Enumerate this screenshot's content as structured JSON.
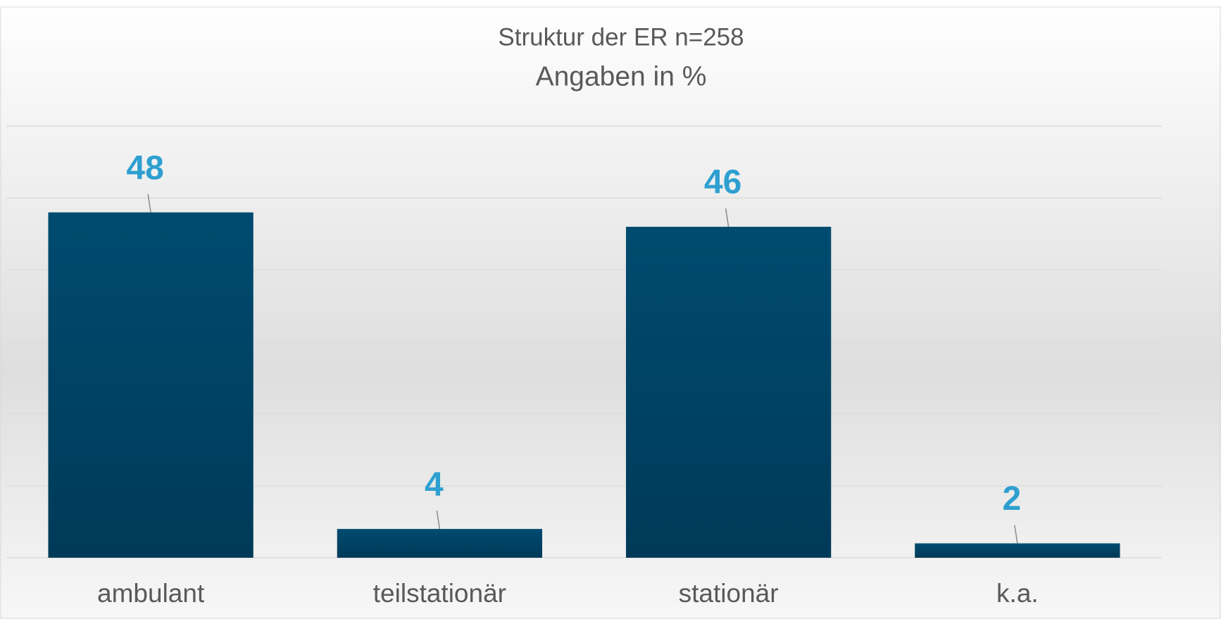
{
  "chart_data": {
    "type": "bar",
    "title": "Struktur der ER n=258",
    "subtitle": "Angaben in %",
    "categories": [
      "ambulant",
      "teilstationär",
      "stationär",
      "k.a."
    ],
    "values": [
      48,
      4,
      46,
      2
    ],
    "color": "#00496d",
    "label_color": "#2e9fd0",
    "ylim": [
      0,
      60
    ],
    "yticks": [
      0,
      10,
      20,
      30,
      40,
      50,
      60
    ],
    "grid": true
  }
}
